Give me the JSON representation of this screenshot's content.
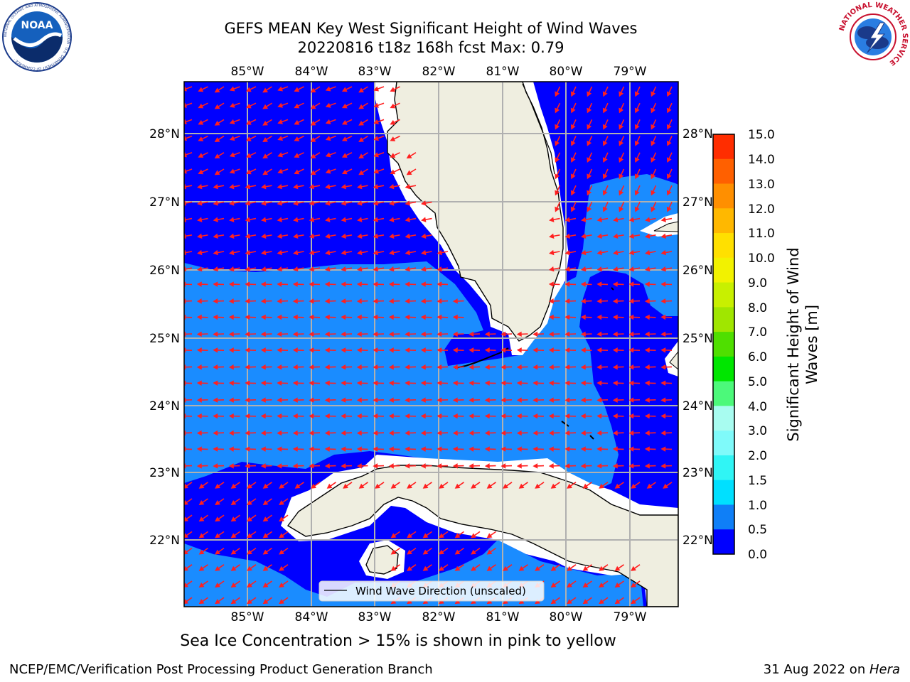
{
  "title_line1": "GEFS MEAN Key West Significant Height of Wind Waves",
  "title_line2": "20220816 t18z 168h fcst   Max: 0.79",
  "subtitle": "Sea Ice Concentration > 15% is shown in pink to yellow",
  "footer_left": "NCEP/EMC/Verification Post Processing Product Generation Branch",
  "footer_right_date": "31 Aug 2022 on ",
  "footer_right_host": "Hera",
  "logos": {
    "left": {
      "label": "NOAA",
      "ring_text": "NATIONAL OCEANIC AND ATMOSPHERIC ADMINISTRATION · U.S. DEPARTMENT OF COMMERCE ·"
    },
    "right": {
      "ring_text": "NATIONAL WEATHER SERVICE"
    }
  },
  "legend_label": "Wind Wave Direction (unscaled)",
  "colorbar": {
    "label_line1": "Significant Height of Wind",
    "label_line2": "Waves [m]",
    "ticks": [
      "0.0",
      "0.5",
      "1.0",
      "1.5",
      "2.0",
      "3.0",
      "4.0",
      "5.0",
      "6.0",
      "7.0",
      "8.0",
      "9.0",
      "10.0",
      "11.0",
      "12.0",
      "13.0",
      "14.0",
      "15.0"
    ],
    "colors": [
      "#0000ff",
      "#0f7ff7",
      "#00e0ff",
      "#30f5f5",
      "#7ffafa",
      "#a8fcf0",
      "#4cf97a",
      "#00e600",
      "#4fdf00",
      "#a0e600",
      "#c8f000",
      "#f2f200",
      "#ffe000",
      "#ffb800",
      "#ff8f00",
      "#ff6000",
      "#ff2d00",
      "#ff0000"
    ]
  },
  "map": {
    "lon_ticks_top": [
      "85°W",
      "84°W",
      "83°W",
      "82°W",
      "81°W",
      "80°W",
      "79°W"
    ],
    "lon_ticks_bottom": [
      "85°W",
      "84°W",
      "83°W",
      "82°W",
      "81°W",
      "80°W",
      "79°W"
    ],
    "lat_ticks_left": [
      "28°N",
      "27°N",
      "26°N",
      "25°N",
      "24°N",
      "23°N",
      "22°N"
    ],
    "lat_ticks_right": [
      "28°N",
      "27°N",
      "26°N",
      "25°N",
      "24°N",
      "23°N",
      "22°N"
    ],
    "colors": {
      "deep": "#0000ff",
      "light": "#1a8cff",
      "land": "#efeee0",
      "grid": "#b0b0b0",
      "arrow": "#ff2020"
    }
  }
}
